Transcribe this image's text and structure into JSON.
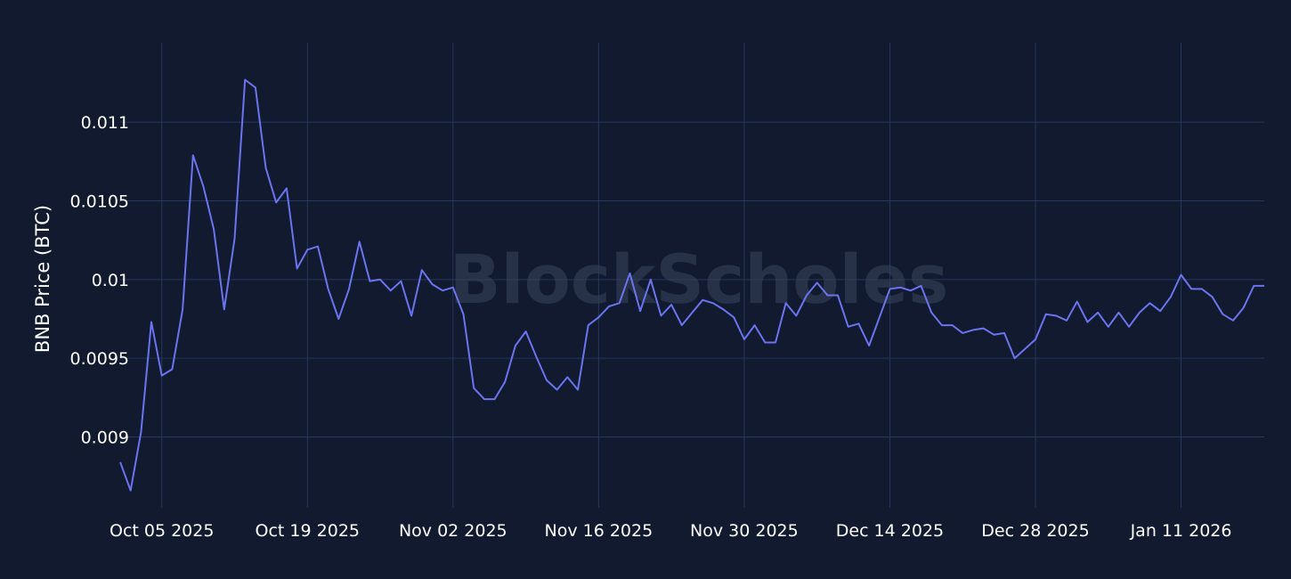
{
  "watermark": "BlockScholes",
  "colors": {
    "background": "#111a2e",
    "grid": "#26365e",
    "line": "#6b74f0",
    "text": "#ffffff"
  },
  "chart_data": {
    "type": "line",
    "title": "",
    "xlabel": "",
    "ylabel": "BNB Price (BTC)",
    "grid": true,
    "legend": "none",
    "x_range": [
      "2025-10-01",
      "2026-01-19"
    ],
    "ylim": [
      0.00855,
      0.01155
    ],
    "x_ticks": [
      {
        "date": "2025-10-05",
        "label": "Oct 05 2025"
      },
      {
        "date": "2025-10-19",
        "label": "Oct 19 2025"
      },
      {
        "date": "2025-11-02",
        "label": "Nov 02 2025"
      },
      {
        "date": "2025-11-16",
        "label": "Nov 16 2025"
      },
      {
        "date": "2025-11-30",
        "label": "Nov 30 2025"
      },
      {
        "date": "2025-12-14",
        "label": "Dec 14 2025"
      },
      {
        "date": "2025-12-28",
        "label": "Dec 28 2025"
      },
      {
        "date": "2026-01-11",
        "label": "Jan 11 2026"
      }
    ],
    "y_ticks": [
      {
        "value": 0.009,
        "label": "0.009"
      },
      {
        "value": 0.0095,
        "label": "0.0095"
      },
      {
        "value": 0.01,
        "label": "0.01"
      },
      {
        "value": 0.0105,
        "label": "0.0105"
      },
      {
        "value": 0.011,
        "label": "0.011"
      }
    ],
    "series": [
      {
        "start_date": "2025-10-01",
        "values": [
          0.00884,
          0.00866,
          0.00903,
          0.00973,
          0.00939,
          0.00943,
          0.00981,
          0.01079,
          0.01059,
          0.01032,
          0.00981,
          0.01026,
          0.01127,
          0.01122,
          0.01071,
          0.01049,
          0.01058,
          0.01007,
          0.01019,
          0.01021,
          0.00994,
          0.00975,
          0.00994,
          0.01024,
          0.00999,
          0.01,
          0.00993,
          0.00999,
          0.00977,
          0.01006,
          0.00997,
          0.00993,
          0.00995,
          0.00978,
          0.00931,
          0.00924,
          0.00924,
          0.00935,
          0.00958,
          0.00967,
          0.00951,
          0.00936,
          0.0093,
          0.00938,
          0.0093,
          0.00971,
          0.00976,
          0.00983,
          0.00985,
          0.01004,
          0.0098,
          0.01,
          0.00977,
          0.00984,
          0.00971,
          0.00979,
          0.00987,
          0.00985,
          0.00981,
          0.00976,
          0.00962,
          0.00971,
          0.0096,
          0.0096,
          0.00985,
          0.00977,
          0.0099,
          0.00998,
          0.0099,
          0.0099,
          0.0097,
          0.00972,
          0.00958,
          0.00976,
          0.00994,
          0.00995,
          0.00993,
          0.00996,
          0.00979,
          0.00971,
          0.00971,
          0.00966,
          0.00968,
          0.00969,
          0.00965,
          0.00966,
          0.0095,
          0.00956,
          0.00962,
          0.00978,
          0.00977,
          0.00974,
          0.00986,
          0.00973,
          0.00979,
          0.0097,
          0.00979,
          0.0097,
          0.00979,
          0.00985,
          0.0098,
          0.00989,
          0.01003,
          0.00994,
          0.00994,
          0.00989,
          0.00978,
          0.00974,
          0.00982,
          0.00996,
          0.00996
        ]
      }
    ]
  }
}
